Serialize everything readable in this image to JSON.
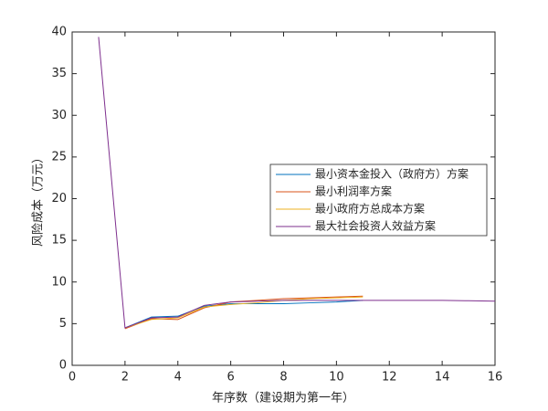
{
  "chart_data": {
    "type": "line",
    "x": [
      1,
      2,
      3,
      4,
      5,
      6,
      7,
      8,
      9,
      10,
      11,
      12,
      13,
      14,
      15,
      16
    ],
    "series": [
      {
        "name": "最小资本金投入（政府方）方案",
        "color": "#0072bd",
        "values": [
          null,
          4.5,
          5.8,
          5.9,
          7.1,
          7.4,
          7.4,
          7.4,
          7.5,
          7.6,
          7.8,
          null,
          null,
          null,
          null,
          null
        ]
      },
      {
        "name": "最小利润率方案",
        "color": "#d95319",
        "values": [
          null,
          4.4,
          5.6,
          5.5,
          6.9,
          7.6,
          7.8,
          8.0,
          8.1,
          8.2,
          8.3,
          null,
          null,
          null,
          null,
          null
        ]
      },
      {
        "name": "最小政府方总成本方案",
        "color": "#edb120",
        "values": [
          null,
          4.5,
          5.5,
          5.7,
          7.0,
          7.3,
          7.5,
          7.8,
          8.0,
          8.1,
          8.2,
          null,
          null,
          null,
          null,
          null
        ]
      },
      {
        "name": "最大社会投资人效益方案",
        "color": "#7e2f8e",
        "values": [
          39.4,
          4.5,
          5.7,
          5.8,
          7.2,
          7.6,
          7.7,
          7.8,
          7.8,
          7.8,
          7.8,
          7.8,
          7.8,
          7.8,
          7.75,
          7.7
        ]
      }
    ],
    "xlabel": "年序数（建设期为第一年）",
    "ylabel": "风险成本（万元）",
    "xlim": [
      0,
      16
    ],
    "xticks": [
      0,
      2,
      4,
      6,
      8,
      10,
      12,
      14,
      16
    ],
    "ylim": [
      0,
      40
    ],
    "yticks": [
      0,
      5,
      10,
      15,
      20,
      25,
      30,
      35,
      40
    ],
    "grid": false
  }
}
